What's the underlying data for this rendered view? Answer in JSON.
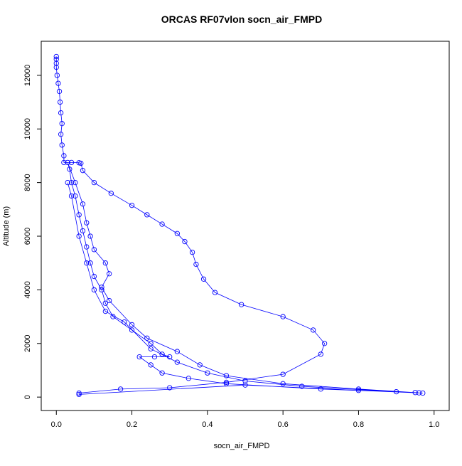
{
  "chart_data": {
    "type": "line",
    "title": "ORCAS RF07vlon socn_air_FMPD",
    "xlabel": "socn_air_FMPD",
    "ylabel": "Altitude (m)",
    "color": "#0000ff",
    "xlim": [
      -0.04,
      1.04
    ],
    "ylim": [
      -500,
      13270
    ],
    "xticks": [
      {
        "value": 0,
        "label": "0.0"
      },
      0.2,
      0.4,
      0.6,
      0.8,
      {
        "value": 1,
        "label": "1.0"
      }
    ],
    "yticks": [
      0,
      2000,
      4000,
      6000,
      8000,
      10000,
      12000
    ],
    "x": [
      0.0,
      0.0,
      0.0,
      0.0,
      0.002,
      0.005,
      0.008,
      0.01,
      0.012,
      0.015,
      0.012,
      0.015,
      0.02,
      0.02,
      0.04,
      0.06,
      0.065,
      0.07,
      0.1,
      0.145,
      0.2,
      0.24,
      0.28,
      0.32,
      0.34,
      0.36,
      0.37,
      0.39,
      0.42,
      0.49,
      0.6,
      0.68,
      0.71,
      0.7,
      0.6,
      0.45,
      0.3,
      0.17,
      0.06,
      0.06,
      0.5,
      0.8,
      0.97,
      0.95,
      0.7,
      0.45,
      0.35,
      0.28,
      0.25,
      0.22,
      0.26,
      0.3,
      0.28,
      0.25,
      0.2,
      0.15,
      0.13,
      0.12,
      0.1,
      0.09,
      0.08,
      0.07,
      0.06,
      0.05,
      0.04,
      0.035,
      0.03,
      0.05,
      0.07,
      0.08,
      0.09,
      0.1,
      0.13,
      0.14,
      0.12,
      0.14,
      0.2,
      0.24,
      0.32,
      0.38,
      0.45,
      0.6,
      0.8,
      0.96,
      0.9,
      0.65,
      0.5,
      0.4,
      0.32,
      0.25,
      0.18,
      0.13,
      0.1,
      0.08,
      0.06,
      0.04,
      0.03
    ],
    "values": [
      12700,
      12600,
      12450,
      12300,
      12000,
      11700,
      11400,
      11000,
      10600,
      10200,
      9800,
      9400,
      9000,
      8750,
      8750,
      8740,
      8720,
      8450,
      8000,
      7600,
      7150,
      6800,
      6450,
      6100,
      5800,
      5400,
      4950,
      4400,
      3900,
      3450,
      3000,
      2500,
      2000,
      1600,
      850,
      550,
      350,
      300,
      150,
      100,
      450,
      250,
      150,
      170,
      300,
      500,
      700,
      900,
      1200,
      1500,
      1500,
      1500,
      1600,
      2000,
      2500,
      3000,
      3500,
      4000,
      4500,
      5000,
      5600,
      6200,
      6800,
      7500,
      8000,
      8500,
      8750,
      8000,
      7200,
      6500,
      6000,
      5500,
      5000,
      4600,
      4100,
      3600,
      2700,
      2200,
      1700,
      1200,
      800,
      500,
      300,
      160,
      200,
      400,
      600,
      900,
      1300,
      1800,
      2800,
      3200,
      4000,
      5000,
      6000,
      7500,
      8000
    ]
  }
}
